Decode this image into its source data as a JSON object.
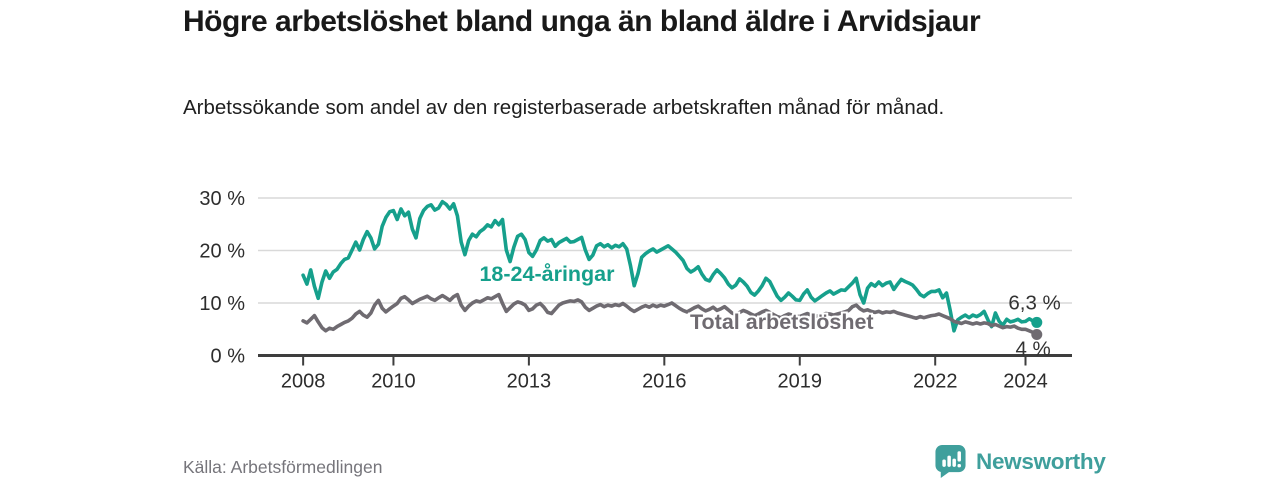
{
  "header": {
    "title": "Högre arbetslöshet bland unga än bland äldre i Arvidsjaur",
    "subtitle": "Arbetssökande som andel av den registerbaserade arbetskraften månad för månad."
  },
  "footer": {
    "source": "Källa: Arbetsförmedlingen",
    "brand": "Newsworthy",
    "logo_icon": "bar-chart-speech-bubble-icon"
  },
  "colors": {
    "young_line": "#16a08c",
    "total_line": "#6f6b71",
    "title_text": "#191919",
    "axis_line": "#3e3e3e",
    "gridline": "#d9d9d9",
    "tick_label": "#2d2d2d",
    "end_label": "#333333",
    "source_text": "#76757b",
    "brand_teal": "#3f9f9c",
    "background": "#ffffff"
  },
  "chart_data": {
    "type": "line",
    "title": "Högre arbetslöshet bland unga än bland äldre i Arvidsjaur",
    "subtitle": "Arbetssökande som andel av den registerbaserade arbetskraften månad för månad.",
    "source": "Källa: Arbetsförmedlingen",
    "x_unit": "month",
    "x_start": "2008-01",
    "x_end": "2024-04",
    "xlabel": "",
    "ylabel": "",
    "x_tick_labels": [
      "2008",
      "2010",
      "2013",
      "2016",
      "2019",
      "2022",
      "2024"
    ],
    "x_tick_values": [
      2008,
      2010,
      2013,
      2016,
      2019,
      2022,
      2024
    ],
    "y_tick_labels": [
      "30 %",
      "20 %",
      "10 %",
      "0 %"
    ],
    "y_tick_values": [
      30,
      20,
      10,
      0
    ],
    "ylim": [
      0,
      32
    ],
    "grid": "horizontal",
    "legend_position": "inline-labels",
    "series": [
      {
        "name": "18-24-åringar",
        "color": "#16a08c",
        "end_label": "6,3 %",
        "end_value": 6.3,
        "values": [
          15.3,
          13.6,
          16.3,
          13.2,
          10.9,
          14.0,
          16.1,
          14.7,
          15.9,
          16.4,
          17.5,
          18.3,
          18.6,
          20.1,
          21.6,
          20.1,
          22.1,
          23.6,
          22.4,
          20.3,
          21.2,
          24.6,
          26.3,
          27.4,
          27.6,
          25.9,
          27.9,
          26.6,
          27.3,
          24.1,
          22.4,
          26.1,
          27.6,
          28.4,
          28.7,
          27.7,
          28.1,
          29.3,
          28.8,
          27.9,
          28.9,
          26.6,
          21.6,
          19.2,
          21.9,
          23.1,
          22.6,
          23.6,
          24.1,
          24.9,
          24.5,
          25.7,
          24.9,
          25.9,
          20.1,
          17.9,
          20.6,
          22.7,
          23.1,
          22.1,
          19.6,
          18.9,
          20.1,
          21.9,
          22.4,
          21.8,
          22.1,
          20.8,
          21.5,
          21.9,
          22.3,
          21.6,
          21.7,
          22.1,
          22.5,
          20.1,
          18.3,
          19.1,
          20.9,
          21.3,
          20.7,
          21.1,
          20.5,
          21.0,
          20.7,
          21.3,
          20.3,
          17.1,
          13.3,
          15.6,
          18.7,
          19.4,
          19.9,
          20.3,
          19.7,
          20.1,
          20.5,
          20.9,
          20.3,
          19.7,
          18.9,
          18.1,
          16.6,
          15.9,
          16.3,
          16.9,
          15.5,
          14.5,
          14.2,
          15.4,
          16.3,
          15.6,
          14.8,
          13.6,
          12.9,
          13.4,
          14.6,
          14.0,
          13.2,
          12.0,
          11.5,
          12.3,
          13.3,
          14.7,
          14.1,
          12.7,
          11.3,
          10.5,
          11.1,
          11.9,
          11.3,
          10.6,
          10.5,
          11.7,
          12.5,
          11.1,
          10.4,
          10.9,
          11.4,
          11.9,
          12.3,
          11.7,
          12.1,
          12.5,
          12.4,
          13.1,
          13.8,
          14.7,
          11.6,
          10.0,
          12.8,
          13.7,
          13.2,
          14.0,
          13.3,
          13.8,
          14.0,
          12.6,
          13.6,
          14.5,
          14.1,
          13.8,
          13.4,
          12.6,
          11.6,
          11.2,
          11.8,
          12.2,
          12.2,
          12.5,
          11.0,
          11.9,
          8.5,
          4.7,
          6.8,
          7.3,
          7.7,
          7.2,
          7.7,
          7.4,
          7.8,
          8.4,
          6.8,
          5.5,
          8.1,
          6.5,
          5.8,
          6.9,
          6.4,
          6.6,
          6.9,
          6.4,
          6.5,
          7.0,
          6.6,
          6.3
        ]
      },
      {
        "name": "Total arbetslöshet",
        "color": "#6f6b71",
        "end_label": "4 %",
        "end_value": 4.0,
        "values": [
          6.6,
          6.2,
          6.9,
          7.6,
          6.4,
          5.3,
          4.7,
          5.2,
          5.0,
          5.5,
          5.9,
          6.3,
          6.6,
          7.1,
          7.9,
          8.4,
          7.7,
          7.3,
          8.1,
          9.6,
          10.5,
          9.0,
          8.3,
          8.9,
          9.4,
          9.9,
          10.9,
          11.2,
          10.6,
          9.9,
          10.3,
          10.7,
          11.0,
          11.3,
          10.8,
          10.5,
          11.0,
          11.4,
          11.0,
          10.5,
          11.2,
          11.6,
          9.6,
          8.6,
          9.4,
          10.0,
          10.4,
          10.2,
          10.6,
          11.0,
          10.8,
          11.2,
          11.6,
          9.9,
          8.4,
          9.1,
          9.8,
          10.2,
          10.0,
          9.6,
          8.6,
          8.9,
          9.6,
          9.9,
          9.2,
          8.2,
          8.0,
          8.8,
          9.6,
          10.0,
          10.2,
          10.4,
          10.3,
          10.6,
          10.2,
          9.2,
          8.6,
          9.0,
          9.4,
          9.7,
          9.3,
          9.6,
          9.4,
          9.7,
          9.5,
          9.9,
          9.4,
          8.8,
          8.4,
          8.8,
          9.2,
          9.5,
          9.2,
          9.6,
          9.3,
          9.6,
          9.4,
          9.7,
          10.0,
          9.5,
          9.0,
          8.6,
          8.3,
          8.7,
          9.1,
          9.4,
          8.9,
          8.5,
          8.8,
          9.2,
          8.6,
          8.9,
          9.3,
          8.7,
          8.1,
          7.8,
          8.2,
          8.6,
          8.3,
          7.9,
          7.6,
          7.9,
          8.3,
          8.6,
          8.2,
          7.8,
          7.4,
          7.2,
          7.6,
          7.9,
          7.7,
          7.5,
          7.4,
          7.7,
          8.0,
          7.7,
          7.4,
          7.6,
          7.8,
          8.0,
          7.9,
          7.7,
          7.9,
          8.1,
          8.3,
          8.6,
          9.3,
          9.6,
          8.9,
          8.5,
          8.7,
          8.4,
          8.2,
          8.4,
          8.1,
          8.3,
          8.2,
          8.4,
          8.1,
          7.9,
          7.7,
          7.5,
          7.3,
          7.1,
          7.4,
          7.2,
          7.4,
          7.6,
          7.7,
          7.9,
          7.6,
          7.3,
          7.0,
          6.5,
          6.3,
          6.1,
          6.4,
          6.2,
          6.0,
          6.2,
          6.0,
          6.2,
          6.1,
          5.7,
          5.9,
          5.6,
          5.3,
          5.5,
          5.4,
          5.6,
          5.2,
          5.0,
          5.0,
          4.7,
          4.4,
          4.0
        ]
      }
    ]
  }
}
